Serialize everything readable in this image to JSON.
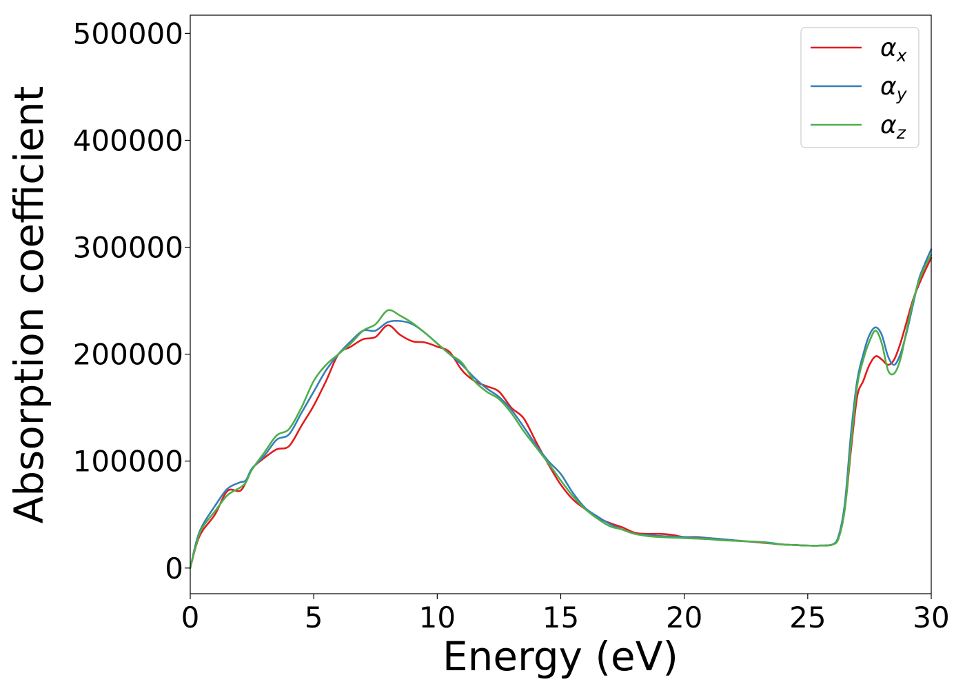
{
  "chart_data": {
    "type": "line",
    "title": "",
    "xlabel": "Energy (eV)",
    "ylabel": "Absorption coefficient",
    "xlim": [
      0,
      30
    ],
    "ylim": [
      -24000,
      517000
    ],
    "xticks": [
      0,
      5,
      10,
      15,
      20,
      25,
      30
    ],
    "xtick_labels": [
      "0",
      "5",
      "10",
      "15",
      "20",
      "25",
      "30"
    ],
    "yticks": [
      0,
      100000,
      200000,
      300000,
      400000,
      500000
    ],
    "ytick_labels": [
      "0",
      "100000",
      "200000",
      "300000",
      "400000",
      "500000"
    ],
    "grid": false,
    "legend": {
      "position": "top-right",
      "entries": [
        "αx",
        "αy",
        "αz"
      ]
    },
    "series": [
      {
        "name": "αx",
        "label_main": "α",
        "label_sub": "x",
        "color": "#e41a1c",
        "x": [
          0,
          0.25,
          0.5,
          1,
          1.5,
          2,
          2.25,
          2.5,
          3,
          3.5,
          4,
          4.5,
          5,
          5.5,
          6,
          6.5,
          7,
          7.5,
          8,
          8.5,
          9,
          9.5,
          10,
          10.5,
          11,
          11.5,
          12,
          12.5,
          13,
          13.5,
          14,
          14.5,
          15,
          15.5,
          16,
          16.5,
          17,
          17.5,
          18,
          18.5,
          19,
          19.5,
          20,
          20.5,
          21,
          21.5,
          22,
          22.5,
          23,
          23.5,
          24,
          24.5,
          25,
          25.5,
          26,
          26.25,
          26.5,
          26.75,
          27,
          27.25,
          27.5,
          27.75,
          28,
          28.25,
          28.5,
          28.75,
          29,
          29.25,
          29.5,
          29.75,
          30
        ],
        "y": [
          0,
          22000,
          35000,
          50000,
          72000,
          72000,
          80000,
          93000,
          103000,
          111000,
          114000,
          133000,
          152000,
          175000,
          200000,
          207000,
          214000,
          216000,
          227000,
          218000,
          212000,
          211000,
          207000,
          202000,
          185000,
          175000,
          170000,
          165000,
          150000,
          140000,
          118000,
          97000,
          78000,
          64000,
          55000,
          47000,
          42000,
          38000,
          33000,
          32000,
          32000,
          31000,
          29000,
          29000,
          28000,
          27000,
          26000,
          25000,
          24000,
          23000,
          22000,
          21500,
          21000,
          21000,
          22000,
          28000,
          55000,
          110000,
          160000,
          175000,
          190000,
          198000,
          195000,
          190000,
          195000,
          210000,
          230000,
          250000,
          265000,
          278000,
          290000
        ]
      },
      {
        "name": "αy",
        "label_main": "α",
        "label_sub": "y",
        "color": "#377eb8",
        "x": [
          0,
          0.25,
          0.5,
          1,
          1.5,
          2,
          2.25,
          2.5,
          3,
          3.5,
          4,
          4.5,
          5,
          5.5,
          6,
          6.5,
          7,
          7.5,
          8,
          8.5,
          9,
          9.5,
          10,
          10.5,
          11,
          11.5,
          12,
          12.5,
          13,
          13.5,
          14,
          14.5,
          15,
          15.5,
          16,
          16.5,
          17,
          17.5,
          18,
          18.5,
          19,
          19.5,
          20,
          20.5,
          21,
          21.5,
          22,
          22.5,
          23,
          23.5,
          24,
          24.5,
          25,
          25.5,
          26,
          26.25,
          26.5,
          26.75,
          27,
          27.25,
          27.5,
          27.75,
          28,
          28.25,
          28.5,
          28.75,
          29,
          29.25,
          29.5,
          29.75,
          30
        ],
        "y": [
          0,
          25000,
          40000,
          58000,
          74000,
          80000,
          82000,
          93000,
          105000,
          120000,
          125000,
          145000,
          165000,
          185000,
          200000,
          212000,
          222000,
          222000,
          230000,
          231000,
          228000,
          220000,
          210000,
          200000,
          190000,
          178000,
          168000,
          160000,
          148000,
          132000,
          115000,
          100000,
          88000,
          70000,
          56000,
          48000,
          41000,
          36000,
          32000,
          31000,
          30000,
          29500,
          29000,
          28500,
          28000,
          27000,
          26000,
          25000,
          24500,
          23500,
          22000,
          21500,
          21000,
          21000,
          22000,
          30000,
          60000,
          125000,
          175000,
          200000,
          218000,
          225000,
          218000,
          198000,
          190000,
          200000,
          220000,
          245000,
          270000,
          285000,
          298000
        ]
      },
      {
        "name": "αz",
        "label_main": "α",
        "label_sub": "z",
        "color": "#4daf4a",
        "x": [
          0,
          0.25,
          0.5,
          1,
          1.5,
          2,
          2.25,
          2.5,
          3,
          3.5,
          4,
          4.5,
          5,
          5.5,
          6,
          6.5,
          7,
          7.5,
          8,
          8.5,
          9,
          9.5,
          10,
          10.5,
          11,
          11.5,
          12,
          12.5,
          13,
          13.5,
          14,
          14.5,
          15,
          15.5,
          16,
          16.5,
          17,
          17.5,
          18,
          18.5,
          19,
          19.5,
          20,
          20.5,
          21,
          21.5,
          22,
          22.5,
          23,
          23.5,
          24,
          24.5,
          25,
          25.5,
          26,
          26.25,
          26.5,
          26.75,
          27,
          27.25,
          27.5,
          27.75,
          28,
          28.25,
          28.5,
          28.75,
          29,
          29.25,
          29.5,
          29.75,
          30
        ],
        "y": [
          0,
          23000,
          38000,
          53000,
          68000,
          75000,
          80000,
          92000,
          108000,
          124000,
          130000,
          150000,
          175000,
          190000,
          200000,
          210000,
          222000,
          228000,
          241000,
          236000,
          229000,
          220000,
          210000,
          200000,
          192000,
          175000,
          165000,
          158000,
          145000,
          128000,
          113000,
          98000,
          82000,
          67000,
          55000,
          46000,
          39000,
          36000,
          32000,
          30000,
          29000,
          28500,
          28000,
          27500,
          27000,
          26000,
          25500,
          25000,
          24500,
          23000,
          22000,
          21500,
          21000,
          21000,
          22000,
          28000,
          55000,
          115000,
          170000,
          195000,
          212000,
          222000,
          210000,
          185000,
          182000,
          195000,
          222000,
          248000,
          268000,
          282000,
          293000
        ]
      }
    ]
  }
}
